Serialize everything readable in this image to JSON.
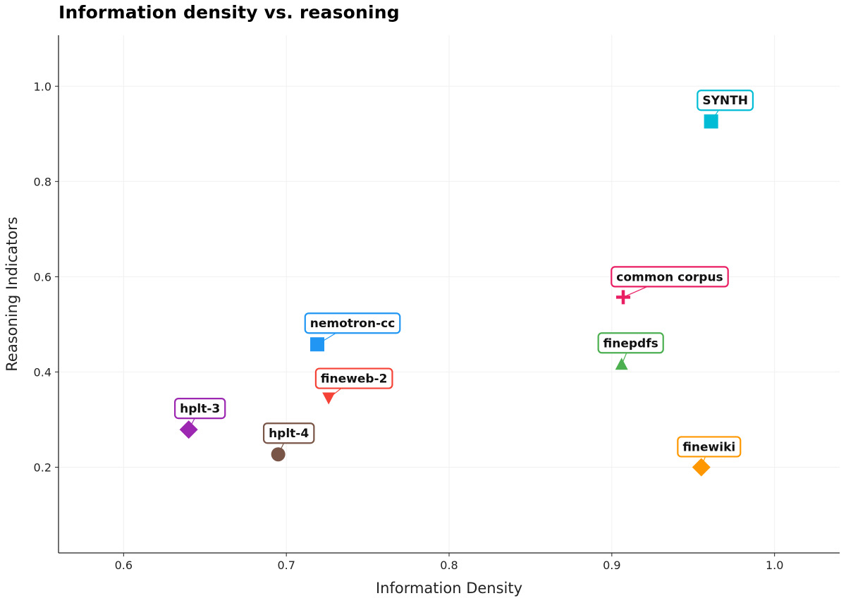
{
  "chart_data": {
    "type": "scatter",
    "title": "Information density vs. reasoning",
    "xlabel": "Information Density",
    "ylabel": "Reasoning Indicators",
    "xlim": [
      0.56,
      1.04
    ],
    "ylim": [
      0.02,
      1.107
    ],
    "xticks": [
      "0.6",
      "0.7",
      "0.8",
      "0.9",
      "1.0"
    ],
    "yticks": [
      "0.2",
      "0.4",
      "0.6",
      "0.8",
      "1.0"
    ],
    "grid": true,
    "points": [
      {
        "name": "SYNTH",
        "x": 0.961,
        "y": 0.926,
        "marker": "square",
        "color": "#00BCD4"
      },
      {
        "name": "common corpus",
        "x": 0.907,
        "y": 0.557,
        "marker": "plus",
        "color": "#E91E63"
      },
      {
        "name": "nemotron-cc",
        "x": 0.719,
        "y": 0.458,
        "marker": "square",
        "color": "#2196F3"
      },
      {
        "name": "finepdfs",
        "x": 0.906,
        "y": 0.415,
        "marker": "triangle-up",
        "color": "#4CAF50"
      },
      {
        "name": "fineweb-2",
        "x": 0.726,
        "y": 0.345,
        "marker": "triangle-down",
        "color": "#F44336"
      },
      {
        "name": "hplt-3",
        "x": 0.64,
        "y": 0.279,
        "marker": "diamond",
        "color": "#9C27B0"
      },
      {
        "name": "hplt-4",
        "x": 0.695,
        "y": 0.227,
        "marker": "circle",
        "color": "#795548"
      },
      {
        "name": "finewiki",
        "x": 0.955,
        "y": 0.2,
        "marker": "diamond",
        "color": "#FF9800"
      }
    ]
  }
}
